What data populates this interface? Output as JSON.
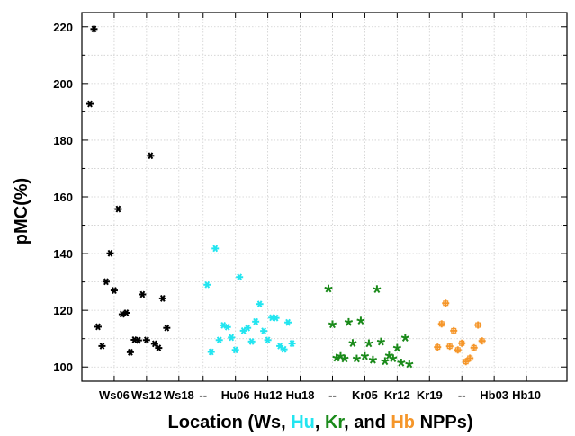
{
  "chart_data": {
    "type": "scatter",
    "ylabel": "pMC(%)",
    "xlabel_parts": [
      {
        "text": "Location (Ws, ",
        "color": "#000000"
      },
      {
        "text": "Hu",
        "color": "#22e5f0"
      },
      {
        "text": ", ",
        "color": "#000000"
      },
      {
        "text": "Kr",
        "color": "#1a8a1a"
      },
      {
        "text": ", and ",
        "color": "#000000"
      },
      {
        "text": "Hb",
        "color": "#f5962a"
      },
      {
        "text": " NPPs)",
        "color": "#000000"
      }
    ],
    "ylim": [
      95,
      225
    ],
    "xlim": [
      0,
      60
    ],
    "yticks": [
      100,
      120,
      140,
      160,
      180,
      200,
      220
    ],
    "xtick_labels": [
      {
        "x": 4,
        "label": "Ws06"
      },
      {
        "x": 8,
        "label": "Ws12"
      },
      {
        "x": 12,
        "label": "Ws18"
      },
      {
        "x": 15,
        "label": "--"
      },
      {
        "x": 19,
        "label": "Hu06"
      },
      {
        "x": 23,
        "label": "Hu12"
      },
      {
        "x": 27,
        "label": "Hu18"
      },
      {
        "x": 31,
        "label": "--"
      },
      {
        "x": 35,
        "label": "Kr05"
      },
      {
        "x": 39,
        "label": "Kr12"
      },
      {
        "x": 43,
        "label": "Kr19"
      },
      {
        "x": 47,
        "label": "--"
      },
      {
        "x": 51,
        "label": "Hb03"
      },
      {
        "x": 55,
        "label": "Hb10"
      }
    ],
    "grid": true,
    "series": [
      {
        "color": "#000000",
        "marker": "hexstar",
        "points": [
          [
            1,
            192.8
          ],
          [
            1.5,
            219.2
          ],
          [
            2,
            114.2
          ],
          [
            2.5,
            107.4
          ],
          [
            3,
            130.1
          ],
          [
            3.5,
            140.1
          ],
          [
            4,
            127.0
          ],
          [
            4.5,
            155.7
          ],
          [
            5,
            118.6
          ],
          [
            5.5,
            119.1
          ],
          [
            6,
            105.2
          ],
          [
            6.5,
            109.6
          ],
          [
            7,
            109.4
          ],
          [
            7.5,
            125.6
          ],
          [
            8,
            109.5
          ],
          [
            8.5,
            174.5
          ],
          [
            9,
            108.2
          ],
          [
            9.5,
            106.7
          ],
          [
            10,
            124.2
          ],
          [
            10.5,
            113.8
          ]
        ]
      },
      {
        "color": "#22e5f0",
        "marker": "hexstar",
        "points": [
          [
            15.5,
            129.0
          ],
          [
            16,
            105.3
          ],
          [
            16.5,
            141.8
          ],
          [
            17,
            109.5
          ],
          [
            17.5,
            114.7
          ],
          [
            18,
            114.1
          ],
          [
            18.5,
            110.4
          ],
          [
            19,
            106.0
          ],
          [
            19.5,
            131.7
          ],
          [
            20,
            112.8
          ],
          [
            20.5,
            113.8
          ],
          [
            21,
            109.0
          ],
          [
            21.5,
            116.0
          ],
          [
            22,
            122.2
          ],
          [
            22.5,
            112.7
          ],
          [
            23,
            109.5
          ],
          [
            23.5,
            117.4
          ],
          [
            24,
            117.3
          ],
          [
            24.5,
            107.4
          ],
          [
            25,
            106.2
          ],
          [
            25.5,
            115.7
          ],
          [
            26,
            108.3
          ]
        ]
      },
      {
        "color": "#1a8a1a",
        "marker": "star",
        "points": [
          [
            30.5,
            127.6
          ],
          [
            31,
            115.0
          ],
          [
            31.5,
            103.2
          ],
          [
            32,
            103.8
          ],
          [
            32.5,
            102.9
          ],
          [
            33,
            115.8
          ],
          [
            33.5,
            108.4
          ],
          [
            34,
            102.9
          ],
          [
            34.5,
            116.3
          ],
          [
            35,
            103.8
          ],
          [
            35.5,
            108.3
          ],
          [
            36,
            102.5
          ],
          [
            36.5,
            127.4
          ],
          [
            37,
            108.9
          ],
          [
            37.5,
            102.0
          ],
          [
            38,
            104.0
          ],
          [
            38.5,
            103.0
          ],
          [
            39,
            106.7
          ],
          [
            39.5,
            101.5
          ],
          [
            40,
            110.3
          ],
          [
            40.5,
            101.0
          ]
        ]
      },
      {
        "color": "#f5962a",
        "marker": "cross",
        "points": [
          [
            44,
            107.0
          ],
          [
            44.5,
            115.2
          ],
          [
            45,
            122.5
          ],
          [
            45.5,
            107.3
          ],
          [
            46,
            112.8
          ],
          [
            46.5,
            106.0
          ],
          [
            47,
            108.4
          ],
          [
            47.5,
            101.9
          ],
          [
            48,
            103.1
          ],
          [
            48.5,
            106.8
          ],
          [
            49,
            114.8
          ],
          [
            49.5,
            109.2
          ]
        ]
      }
    ]
  }
}
